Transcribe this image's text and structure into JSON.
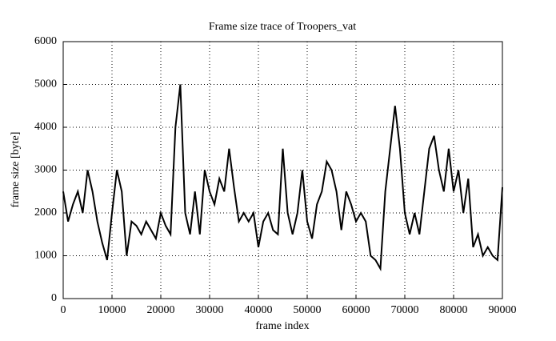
{
  "chart_data": {
    "type": "line",
    "title": "Frame size trace of Troopers_vat",
    "x_label": "frame index",
    "y_label": "frame size [byte]",
    "x": [
      0,
      1000,
      2000,
      3000,
      4000,
      5000,
      6000,
      7000,
      8000,
      9000,
      10000,
      11000,
      12000,
      13000,
      14000,
      15000,
      16000,
      17000,
      18000,
      19000,
      20000,
      21000,
      22000,
      23000,
      24000,
      25000,
      26000,
      27000,
      28000,
      29000,
      30000,
      31000,
      32000,
      33000,
      34000,
      35000,
      36000,
      37000,
      38000,
      39000,
      40000,
      41000,
      42000,
      43000,
      44000,
      45000,
      46000,
      47000,
      48000,
      49000,
      50000,
      51000,
      52000,
      53000,
      54000,
      55000,
      56000,
      57000,
      58000,
      59000,
      60000,
      61000,
      62000,
      63000,
      64000,
      65000,
      66000,
      67000,
      68000,
      69000,
      70000,
      71000,
      72000,
      73000,
      74000,
      75000,
      76000,
      77000,
      78000,
      79000,
      80000,
      81000,
      82000,
      83000,
      84000,
      85000,
      86000,
      87000,
      88000,
      89000,
      90000
    ],
    "series": [
      {
        "name": "Troopers_vat",
        "color": "#000000",
        "values": [
          2500,
          1800,
          2200,
          2500,
          2000,
          3000,
          2500,
          1800,
          1300,
          900,
          2000,
          3000,
          2500,
          1000,
          1800,
          1700,
          1500,
          1800,
          1600,
          1400,
          2000,
          1700,
          1500,
          4000,
          5000,
          2000,
          1500,
          2500,
          1500,
          3000,
          2500,
          2200,
          2800,
          2500,
          3500,
          2600,
          1800,
          2000,
          1800,
          2000,
          1200,
          1800,
          2000,
          1600,
          1500,
          3500,
          2000,
          1500,
          2000,
          3000,
          1800,
          1400,
          2200,
          2500,
          3200,
          3000,
          2500,
          1600,
          2500,
          2200,
          1800,
          2000,
          1800,
          1000,
          900,
          700,
          2500,
          3500,
          4500,
          3500,
          2000,
          1500,
          2000,
          1500,
          2500,
          3500,
          3800,
          3000,
          2500,
          3500,
          2500,
          3000,
          2000,
          2800,
          1200,
          1500,
          1000,
          1200,
          1000,
          900,
          2600
        ]
      }
    ],
    "xlim": [
      0,
      90000
    ],
    "ylim": [
      0,
      6000
    ],
    "xticks": [
      0,
      10000,
      20000,
      30000,
      40000,
      50000,
      60000,
      70000,
      80000,
      90000
    ],
    "yticks": [
      0,
      1000,
      2000,
      3000,
      4000,
      5000,
      6000
    ],
    "grid": true
  }
}
